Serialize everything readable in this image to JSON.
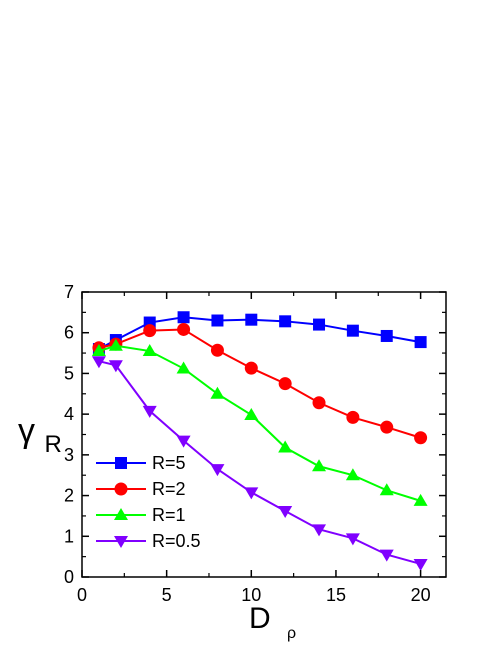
{
  "chart_data": {
    "type": "line",
    "x_axis": {
      "label_main": "D",
      "label_sub": "ρ",
      "range": [
        0,
        21.5
      ],
      "ticks": [
        0,
        5,
        10,
        15,
        20
      ],
      "minor_ticks": [
        2.5,
        7.5,
        12.5,
        17.5
      ]
    },
    "y_axis": {
      "label_main": "γ",
      "label_sub": "R",
      "range": [
        0,
        7
      ],
      "ticks": [
        0,
        1,
        2,
        3,
        4,
        5,
        6,
        7
      ],
      "minor_ticks": [
        0.5,
        1.5,
        2.5,
        3.5,
        4.5,
        5.5,
        6.5
      ]
    },
    "grid": false,
    "legend_position": "lower-left",
    "series": [
      {
        "name": "R=5",
        "color": "#0000ff",
        "marker": "square",
        "x": [
          1,
          2,
          4,
          6,
          8,
          10,
          12,
          14,
          16,
          18,
          20
        ],
        "y": [
          5.6,
          5.82,
          6.25,
          6.38,
          6.3,
          6.32,
          6.28,
          6.2,
          6.05,
          5.92,
          5.77
        ]
      },
      {
        "name": "R=2",
        "color": "#ff0000",
        "marker": "circle",
        "x": [
          1,
          2,
          4,
          6,
          8,
          10,
          12,
          14,
          16,
          18,
          20
        ],
        "y": [
          5.63,
          5.72,
          6.05,
          6.08,
          5.57,
          5.13,
          4.75,
          4.28,
          3.92,
          3.68,
          3.42
        ]
      },
      {
        "name": "R=1",
        "color": "#00ff00",
        "marker": "triangle-up",
        "x": [
          1,
          2,
          4,
          6,
          8,
          10,
          12,
          14,
          16,
          18,
          20
        ],
        "y": [
          5.55,
          5.68,
          5.55,
          5.12,
          4.5,
          3.98,
          3.18,
          2.72,
          2.5,
          2.13,
          1.87
        ]
      },
      {
        "name": "R=0.5",
        "color": "#8000ff",
        "marker": "triangle-down",
        "x": [
          1,
          2,
          4,
          6,
          8,
          10,
          12,
          14,
          16,
          18,
          20
        ],
        "y": [
          5.3,
          5.2,
          4.08,
          3.35,
          2.65,
          2.08,
          1.62,
          1.17,
          0.95,
          0.55,
          0.32
        ]
      }
    ]
  }
}
